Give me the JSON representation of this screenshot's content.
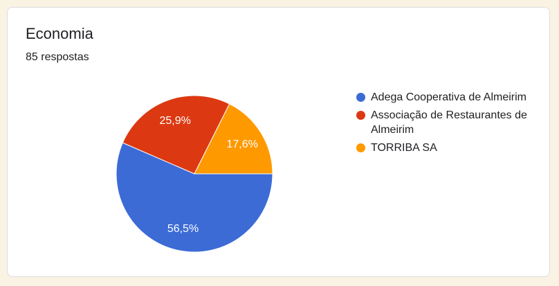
{
  "window": {
    "background_color": "#FAF3E3"
  },
  "card": {
    "title": "Economia",
    "subtitle": "85 respostas",
    "background_color": "#FFFFFF",
    "border_color": "#DADCE0"
  },
  "chart_data": {
    "type": "pie",
    "title": "Economia",
    "responses_label": "85 respostas",
    "legend_position": "right",
    "start_angle_deg": 0,
    "direction": "clockwise",
    "slice_border_color": "#FFFFFF",
    "label_color": "#FFFFFF",
    "slices": [
      {
        "label": "Adega Cooperativa de Almeirim",
        "value_percent": 56.5,
        "display_label": "56,5%",
        "color": "#3C6BD6"
      },
      {
        "label": "Associação de Restaurantes de Almeirim",
        "value_percent": 25.9,
        "display_label": "25,9%",
        "color": "#DC3912"
      },
      {
        "label": "TORRIBA SA",
        "value_percent": 17.6,
        "display_label": "17,6%",
        "color": "#FF9900"
      }
    ]
  }
}
